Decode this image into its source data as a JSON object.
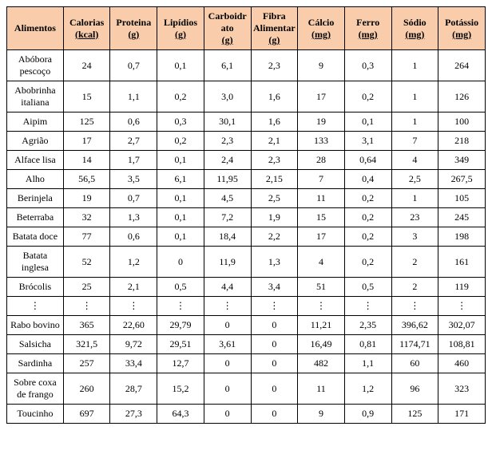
{
  "table": {
    "header_bg": "#f9cdab",
    "columns": [
      {
        "label": "Alimentos",
        "unit": ""
      },
      {
        "label": "Calorias",
        "unit": "(kcal)"
      },
      {
        "label": "Proteina",
        "unit": "(g)"
      },
      {
        "label": "Lipídios",
        "unit": "(g)"
      },
      {
        "label": "Carboidrato",
        "unit": "(g)"
      },
      {
        "label": "Fibra Alimentar",
        "unit": "(g)"
      },
      {
        "label": "Cálcio",
        "unit": "(mg)"
      },
      {
        "label": "Ferro",
        "unit": "(mg)"
      },
      {
        "label": "Sódio",
        "unit": "(mg)"
      },
      {
        "label": "Potássio",
        "unit": "(mg)"
      }
    ],
    "rows": [
      [
        "Abóbora pescoço",
        "24",
        "0,7",
        "0,1",
        "6,1",
        "2,3",
        "9",
        "0,3",
        "1",
        "264"
      ],
      [
        "Abobrinha italiana",
        "15",
        "1,1",
        "0,2",
        "3,0",
        "1,6",
        "17",
        "0,2",
        "1",
        "126"
      ],
      [
        "Aipim",
        "125",
        "0,6",
        "0,3",
        "30,1",
        "1,6",
        "19",
        "0,1",
        "1",
        "100"
      ],
      [
        "Agrião",
        "17",
        "2,7",
        "0,2",
        "2,3",
        "2,1",
        "133",
        "3,1",
        "7",
        "218"
      ],
      [
        "Alface lisa",
        "14",
        "1,7",
        "0,1",
        "2,4",
        "2,3",
        "28",
        "0,64",
        "4",
        "349"
      ],
      [
        "Alho",
        "56,5",
        "3,5",
        "6,1",
        "11,95",
        "2,15",
        "7",
        "0,4",
        "2,5",
        "267,5"
      ],
      [
        "Berinjela",
        "19",
        "0,7",
        "0,1",
        "4,5",
        "2,5",
        "11",
        "0,2",
        "1",
        "105"
      ],
      [
        "Beterraba",
        "32",
        "1,3",
        "0,1",
        "7,2",
        "1,9",
        "15",
        "0,2",
        "23",
        "245"
      ],
      [
        "Batata doce",
        "77",
        "0,6",
        "0,1",
        "18,4",
        "2,2",
        "17",
        "0,2",
        "3",
        "198"
      ],
      [
        "Batata inglesa",
        "52",
        "1,2",
        "0",
        "11,9",
        "1,3",
        "4",
        "0,2",
        "2",
        "161"
      ],
      [
        "Brócolis",
        "25",
        "2,1",
        "0,5",
        "4,4",
        "3,4",
        "51",
        "0,5",
        "2",
        "119"
      ],
      [
        "⋮",
        "⋮",
        "⋮",
        "⋮",
        "⋮",
        "⋮",
        "⋮",
        "⋮",
        "⋮",
        "⋮"
      ],
      [
        "Rabo bovino",
        "365",
        "22,60",
        "29,79",
        "0",
        "0",
        "11,21",
        "2,35",
        "396,62",
        "302,07"
      ],
      [
        "Salsicha",
        "321,5",
        "9,72",
        "29,51",
        "3,61",
        "0",
        "16,49",
        "0,81",
        "1174,71",
        "108,81"
      ],
      [
        "Sardinha",
        "257",
        "33,4",
        "12,7",
        "0",
        "0",
        "482",
        "1,1",
        "60",
        "460"
      ],
      [
        "Sobre coxa de frango",
        "260",
        "28,7",
        "15,2",
        "0",
        "0",
        "11",
        "1,2",
        "96",
        "323"
      ],
      [
        "Toucinho",
        "697",
        "27,3",
        "64,3",
        "0",
        "0",
        "9",
        "0,9",
        "125",
        "171"
      ]
    ]
  }
}
